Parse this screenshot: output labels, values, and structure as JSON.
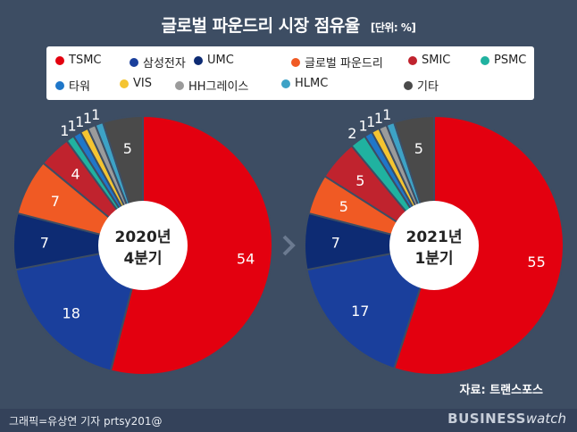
{
  "header": {
    "title": "글로벌 파운드리 시장 점유율",
    "unit": "[단위: %]"
  },
  "colors": {
    "TSMC": "#e3000f",
    "삼성전자": "#1a3f9c",
    "UMC": "#0d2b73",
    "글로벌 파운드리": "#f05a24",
    "SMIC": "#c0232e",
    "PSMC": "#20b2a0",
    "타워": "#1f77c9",
    "VIS": "#f4c431",
    "HH그레이스": "#9b9b9b",
    "HLMC": "#3da2c6",
    "기타": "#4a4a4a"
  },
  "legend": [
    "TSMC",
    "삼성전자",
    "UMC",
    "글로벌 파운드리",
    "SMIC",
    "PSMC",
    "타워",
    "VIS",
    "HH그레이스",
    "HLMC",
    "기타"
  ],
  "chart_data": [
    {
      "type": "pie",
      "center_label": [
        "2020년",
        "4분기"
      ],
      "categories": [
        "TSMC",
        "삼성전자",
        "UMC",
        "글로벌 파운드리",
        "SMIC",
        "PSMC",
        "타워",
        "VIS",
        "HH그레이스",
        "HLMC",
        "기타"
      ],
      "values": [
        54,
        18,
        7,
        7,
        4,
        1,
        1,
        1,
        1,
        1,
        5
      ]
    },
    {
      "type": "pie",
      "center_label": [
        "2021년",
        "1분기"
      ],
      "categories": [
        "TSMC",
        "삼성전자",
        "UMC",
        "글로벌 파운드리",
        "SMIC",
        "PSMC",
        "타워",
        "VIS",
        "HH그레이스",
        "HLMC",
        "기타"
      ],
      "values": [
        55,
        17,
        7,
        5,
        5,
        2,
        1,
        1,
        1,
        1,
        5
      ]
    }
  ],
  "source": "자료: 트랜스포스",
  "credit": "그래픽=유상연 기자 prtsy201@",
  "brand": {
    "main": "BUSINESS",
    "sub": "watch"
  }
}
